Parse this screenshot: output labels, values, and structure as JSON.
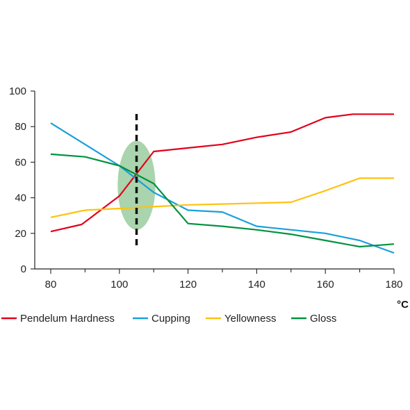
{
  "chart_data": {
    "type": "line",
    "x_unit_label": "°C",
    "xlim": [
      75,
      180
    ],
    "ylim": [
      0,
      100
    ],
    "x_ticks": [
      80,
      100,
      120,
      140,
      160,
      180
    ],
    "y_ticks": [
      0,
      20,
      40,
      60,
      80,
      100
    ],
    "grid": false,
    "legend_position": "bottom",
    "marker_x": 105,
    "highlight": {
      "x_center": 105,
      "y_center": 47,
      "x_half_width": 5.5,
      "y_half_height": 25,
      "color": "#9acd9f"
    },
    "series": [
      {
        "name": "Pendelum Hardness",
        "color": "#e2001a",
        "x": [
          80,
          89,
          100,
          110,
          120,
          130,
          140,
          150,
          160,
          168,
          180
        ],
        "y": [
          21,
          25,
          41,
          66,
          68,
          70,
          74,
          77,
          85,
          87,
          87
        ]
      },
      {
        "name": "Cupping",
        "color": "#1a9fdb",
        "x": [
          80,
          90,
          100,
          110,
          120,
          130,
          140,
          150,
          160,
          170,
          180
        ],
        "y": [
          82,
          70,
          58,
          43,
          33,
          32,
          24,
          22,
          20,
          16,
          9
        ]
      },
      {
        "name": "Yellowness",
        "color": "#ffc20e",
        "x": [
          80,
          90,
          100,
          110,
          120,
          130,
          140,
          150,
          160,
          170,
          180
        ],
        "y": [
          29,
          33,
          34,
          35,
          36,
          36.5,
          37,
          37.5,
          44,
          51,
          51
        ]
      },
      {
        "name": "Gloss",
        "color": "#00923f",
        "x": [
          80,
          90,
          100,
          110,
          120,
          130,
          140,
          150,
          160,
          170,
          180
        ],
        "y": [
          64.5,
          63,
          58,
          48,
          25.5,
          24,
          22,
          19.5,
          16,
          12.5,
          14
        ]
      }
    ]
  }
}
